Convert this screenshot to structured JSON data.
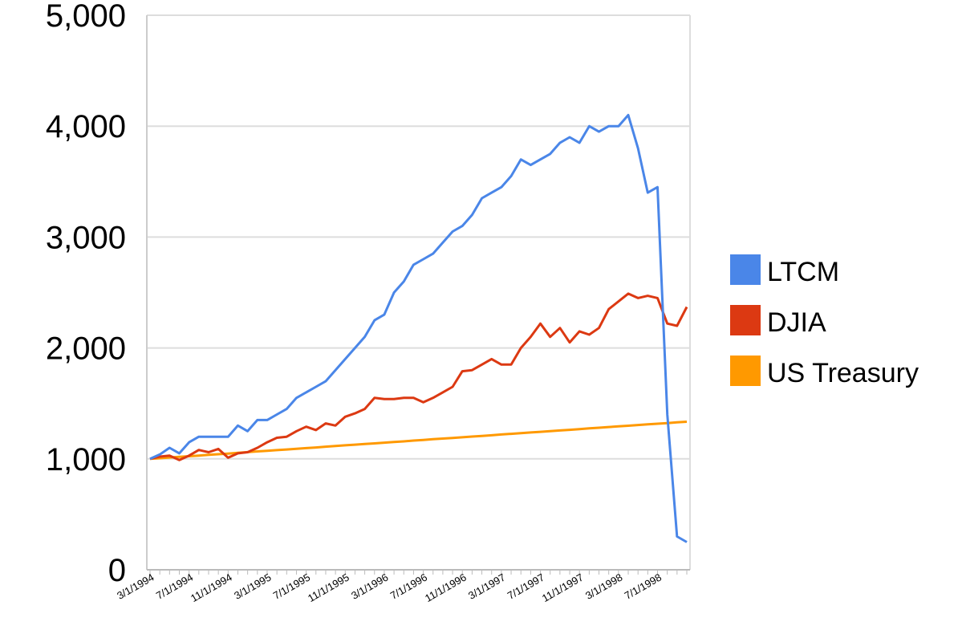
{
  "chart_data": {
    "type": "line",
    "title": "",
    "xlabel": "",
    "ylabel": "",
    "ylim": [
      0,
      5000
    ],
    "yticks": [
      0,
      1000,
      2000,
      3000,
      4000,
      5000
    ],
    "ytick_labels": [
      "0",
      "1,000",
      "2,000",
      "3,000",
      "4,000",
      "5,000"
    ],
    "grid": true,
    "legend_position": "right",
    "x": [
      "3/1/1994",
      "4/1/1994",
      "5/1/1994",
      "6/1/1994",
      "7/1/1994",
      "8/1/1994",
      "9/1/1994",
      "10/1/1994",
      "11/1/1994",
      "12/1/1994",
      "1/1/1995",
      "2/1/1995",
      "3/1/1995",
      "4/1/1995",
      "5/1/1995",
      "6/1/1995",
      "7/1/1995",
      "8/1/1995",
      "9/1/1995",
      "10/1/1995",
      "11/1/1995",
      "12/1/1995",
      "1/1/1996",
      "2/1/1996",
      "3/1/1996",
      "4/1/1996",
      "5/1/1996",
      "6/1/1996",
      "7/1/1996",
      "8/1/1996",
      "9/1/1996",
      "10/1/1996",
      "11/1/1996",
      "12/1/1996",
      "1/1/1997",
      "2/1/1997",
      "3/1/1997",
      "4/1/1997",
      "5/1/1997",
      "6/1/1997",
      "7/1/1997",
      "8/1/1997",
      "9/1/1997",
      "10/1/1997",
      "11/1/1997",
      "12/1/1997",
      "1/1/1998",
      "2/1/1998",
      "3/1/1998",
      "4/1/1998",
      "5/1/1998",
      "6/1/1998",
      "7/1/1998",
      "8/1/1998",
      "9/1/1998",
      "10/1/1998"
    ],
    "x_tick_labels": [
      "3/1/1994",
      "7/1/1994",
      "11/1/1994",
      "3/1/1995",
      "7/1/1995",
      "11/1/1995",
      "3/1/1996",
      "7/1/1996",
      "11/1/1996",
      "3/1/1997",
      "7/1/1997",
      "11/1/1997",
      "3/1/1998",
      "7/1/1998"
    ],
    "series": [
      {
        "name": "LTCM",
        "color": "#4a86e8",
        "values": [
          1000,
          1040,
          1100,
          1050,
          1150,
          1200,
          1200,
          1200,
          1200,
          1300,
          1250,
          1350,
          1350,
          1400,
          1450,
          1550,
          1600,
          1650,
          1700,
          1800,
          1900,
          2000,
          2100,
          2250,
          2300,
          2500,
          2600,
          2750,
          2800,
          2850,
          2950,
          3050,
          3100,
          3200,
          3350,
          3400,
          3450,
          3550,
          3700,
          3650,
          3700,
          3750,
          3850,
          3900,
          3850,
          4000,
          3950,
          4000,
          4000,
          4100,
          3800,
          3400,
          3450,
          1400,
          300,
          250
        ]
      },
      {
        "name": "DJIA",
        "color": "#dc3912",
        "values": [
          1000,
          1020,
          1030,
          990,
          1030,
          1080,
          1060,
          1090,
          1010,
          1050,
          1060,
          1100,
          1150,
          1190,
          1200,
          1250,
          1290,
          1260,
          1320,
          1300,
          1380,
          1410,
          1450,
          1550,
          1540,
          1540,
          1550,
          1550,
          1510,
          1550,
          1600,
          1650,
          1790,
          1800,
          1850,
          1900,
          1850,
          1850,
          2000,
          2100,
          2220,
          2100,
          2180,
          2050,
          2150,
          2120,
          2180,
          2350,
          2420,
          2490,
          2450,
          2470,
          2450,
          2220,
          2200,
          2370
        ]
      },
      {
        "name": "US Treasury",
        "color": "#ff9900",
        "values": [
          1000,
          1006,
          1012,
          1018,
          1024,
          1030,
          1036,
          1042,
          1048,
          1054,
          1061,
          1067,
          1073,
          1079,
          1085,
          1091,
          1097,
          1103,
          1110,
          1116,
          1122,
          1128,
          1134,
          1140,
          1146,
          1152,
          1158,
          1165,
          1171,
          1177,
          1183,
          1189,
          1195,
          1201,
          1207,
          1213,
          1220,
          1226,
          1232,
          1238,
          1244,
          1250,
          1256,
          1262,
          1268,
          1275,
          1281,
          1287,
          1293,
          1299,
          1305,
          1311,
          1317,
          1323,
          1329,
          1335
        ]
      }
    ]
  }
}
